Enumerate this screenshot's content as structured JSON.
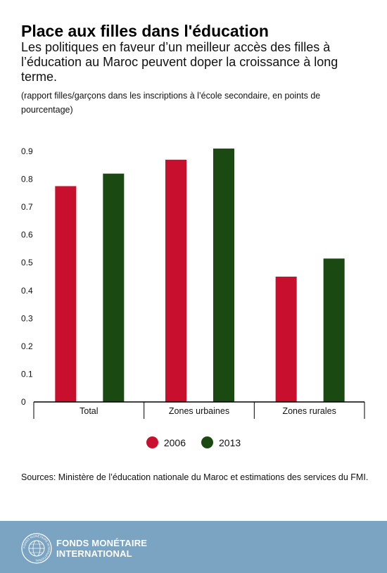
{
  "header": {
    "title": "Place aux filles dans l'éducation",
    "subtitle": "Les politiques en faveur d’un meilleur accès des filles à l’éducation au Maroc peuvent doper la croissance à long terme.",
    "unit_note": "(rapport filles/garçons dans les inscriptions à l’école secondaire, en points de pourcentage)"
  },
  "chart_data": {
    "type": "bar",
    "categories": [
      "Total",
      "Zones urbaines",
      "Zones rurales"
    ],
    "series": [
      {
        "name": "2006",
        "color": "#c8102e",
        "values": [
          0.775,
          0.87,
          0.45
        ]
      },
      {
        "name": "2013",
        "color": "#1a4a12",
        "values": [
          0.82,
          0.91,
          0.515
        ]
      }
    ],
    "yticks": [
      "0",
      "0.1",
      "0.2",
      "0.3",
      "0.4",
      "0.5",
      "0.6",
      "0.7",
      "0.8",
      "0.9"
    ],
    "ylim": [
      0,
      0.9
    ],
    "grid": false,
    "legend_position": "bottom-center"
  },
  "legend": {
    "items": [
      {
        "label": "2006",
        "color": "#c8102e"
      },
      {
        "label": "2013",
        "color": "#1a4a12"
      }
    ]
  },
  "source": "Sources: Ministère de l’éducation nationale du Maroc et estimations des services du FMI.",
  "footer": {
    "org_line1": "FONDS MONÉTAIRE",
    "org_line2": "INTERNATIONAL",
    "seal_text": "FONDS MONÉTAIRE INTERNATIONAL"
  }
}
